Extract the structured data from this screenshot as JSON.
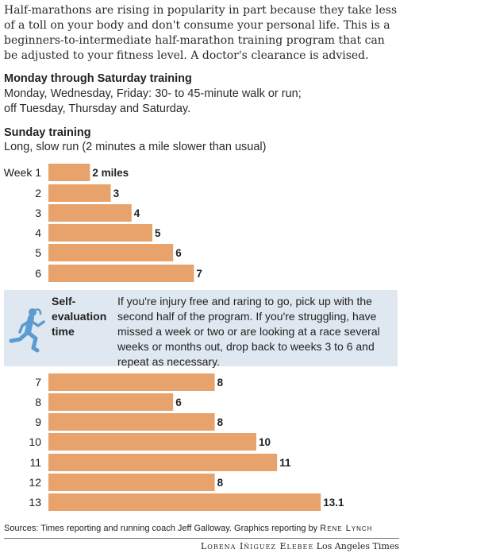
{
  "intro": "Half-marathons are rising in popularity in part because they take less of a toll on your body and don't consume your personal life. This is a beginners-to-intermediate half-marathon training program that can be adjusted to your fitness level. A doctor's clearance is advised.",
  "weekday": {
    "heading": "Monday through Saturday training",
    "line1": "Monday, Wednesday, Friday: 30- to 45-minute walk or run;",
    "line2": "off Tuesday, Thursday and Saturday."
  },
  "sunday": {
    "heading": "Sunday training",
    "subheading": "Long, slow run (2 minutes a mile slower than usual)"
  },
  "evaluation": {
    "title": "Self-evaluation time",
    "text": "If you're injury free and raring to go, pick up with the second half of the program. If you're struggling, have missed a week or two or are looking at a race several weeks or months out, drop back to weeks 3 to 6 and repeat as necessary.",
    "icon": "runner-icon"
  },
  "chart_data": {
    "type": "bar",
    "orientation": "horizontal",
    "categories": [
      "Week 1",
      "2",
      "3",
      "4",
      "5",
      "6",
      "7",
      "8",
      "9",
      "10",
      "11",
      "12",
      "13"
    ],
    "values": [
      2,
      3,
      4,
      5,
      6,
      7,
      8,
      6,
      8,
      10,
      11,
      8,
      13.1
    ],
    "value_labels": [
      "2 miles",
      "3",
      "4",
      "5",
      "6",
      "7",
      "8",
      "6",
      "8",
      "10",
      "11",
      "8",
      "13.1"
    ],
    "unit": "miles",
    "bar_color": "#e8a36c",
    "grid": false
  },
  "footer": {
    "sources": "Sources: Times reporting and running coach Jeff Galloway. Graphics reporting by",
    "reporter": "Rene Lynch",
    "artist": "Lorena Iñiguez Elebee",
    "publication": "Los Angeles Times"
  },
  "colors": {
    "bar": "#e8a36c",
    "eval_background": "#dfe8f1",
    "runner": "#5b9bd0"
  }
}
